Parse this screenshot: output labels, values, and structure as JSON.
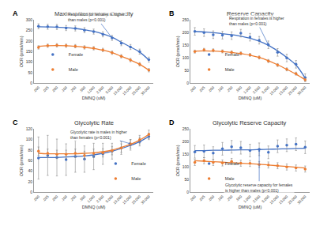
{
  "chart_data": [
    {
      "type": "scatter",
      "label": "A",
      "title": "Maximal Respiratory Capacity",
      "x_label": "DMNQ (uM)",
      "y_label": "OCR (pmol/min)",
      "categories": [
        ".000",
        ".025",
        ".050",
        ".100",
        ".250",
        ".500",
        "1.000",
        "2.500",
        "5.000",
        "10.000",
        "15.000",
        "20.000",
        "30.000"
      ],
      "series": [
        {
          "name": "Female",
          "color": "#4472c4",
          "marker": "circle",
          "values": [
            270,
            268,
            267,
            262,
            260,
            252,
            245,
            232,
            215,
            190,
            172,
            150,
            112
          ],
          "errors": [
            12,
            12,
            12,
            12,
            12,
            12,
            12,
            12,
            12,
            12,
            12,
            12,
            12
          ],
          "trend": [
            268,
            267,
            266,
            264,
            260,
            254,
            246,
            234,
            218,
            195,
            172,
            148,
            110
          ]
        },
        {
          "name": "Male",
          "color": "#ed7d31",
          "marker": "circle",
          "values": [
            170,
            178,
            180,
            178,
            176,
            170,
            166,
            158,
            145,
            128,
            110,
            90,
            62
          ],
          "errors": [
            8,
            8,
            8,
            8,
            8,
            8,
            8,
            8,
            8,
            8,
            8,
            8,
            8
          ],
          "trend": [
            175,
            178,
            179,
            178,
            175,
            171,
            165,
            157,
            145,
            128,
            110,
            90,
            62
          ]
        }
      ],
      "ylim": [
        0,
        300
      ],
      "yticks": [
        0,
        50,
        100,
        150,
        200,
        250,
        300
      ],
      "grid": false,
      "legend": "lower left",
      "annotation": {
        "text": [
          "Respiration for females is higher",
          "than males (p<0.001)"
        ],
        "category": "5.000",
        "y": 215
      }
    },
    {
      "type": "scatter",
      "label": "B",
      "title": "Reserve Capacity",
      "x_label": "DMNQ (uM)",
      "y_label": "OCR (pmol/min)",
      "categories": [
        ".000",
        ".025",
        ".050",
        ".100",
        ".250",
        ".500",
        "1.000",
        "2.500",
        "5.000",
        "10.000",
        "15.000",
        "20.000",
        "30.000"
      ],
      "series": [
        {
          "name": "Female",
          "color": "#4472c4",
          "marker": "circle",
          "values": [
            205,
            200,
            192,
            190,
            188,
            198,
            182,
            170,
            152,
            122,
            100,
            75,
            22
          ],
          "errors": [
            15,
            15,
            15,
            15,
            15,
            15,
            15,
            15,
            15,
            15,
            15,
            15,
            15
          ],
          "trend": [
            205,
            203,
            200,
            196,
            192,
            186,
            178,
            166,
            150,
            128,
            102,
            72,
            20
          ]
        },
        {
          "name": "Male",
          "color": "#ed7d31",
          "marker": "circle",
          "values": [
            125,
            132,
            130,
            126,
            122,
            118,
            112,
            102,
            88,
            72,
            55,
            38,
            14
          ],
          "errors": [
            6,
            6,
            6,
            6,
            6,
            6,
            6,
            6,
            6,
            6,
            6,
            6,
            6
          ],
          "trend": [
            127,
            128,
            127,
            125,
            122,
            117,
            111,
            102,
            89,
            73,
            55,
            36,
            14
          ]
        }
      ],
      "ylim": [
        0,
        250
      ],
      "yticks": [
        0,
        50,
        100,
        150,
        200,
        250
      ],
      "grid": false,
      "legend": "lower left",
      "annotation": {
        "text": [
          "Respiration in females is higher",
          "than males (p<0.001)"
        ],
        "category": "5.000",
        "y": 152
      }
    },
    {
      "type": "scatter",
      "label": "C",
      "title": "Glycolytic Rate",
      "x_label": "DMNQ (uM)",
      "y_label": "OCR (pmol/min)",
      "categories": [
        ".000",
        ".025",
        ".050",
        ".100",
        ".250",
        ".500",
        "1.000",
        "2.500",
        "5.000",
        "10.000",
        "15.000",
        "20.000",
        "30.000"
      ],
      "series": [
        {
          "name": "Female",
          "color": "#4472c4",
          "marker": "circle",
          "values": [
            65,
            70,
            66,
            62,
            68,
            63,
            68,
            73,
            78,
            84,
            90,
            96,
            106
          ],
          "errors": [
            40,
            38,
            35,
            30,
            30,
            25,
            25,
            20,
            15,
            12,
            10,
            8,
            6
          ],
          "trend": [
            66,
            66,
            66,
            67,
            68,
            69,
            71,
            74,
            78,
            83,
            89,
            96,
            106
          ]
        },
        {
          "name": "Male",
          "color": "#ed7d31",
          "marker": "circle",
          "values": [
            78,
            74,
            72,
            72,
            74,
            70,
            74,
            75,
            79,
            84,
            92,
            100,
            110
          ],
          "errors": [
            8,
            8,
            8,
            8,
            8,
            8,
            8,
            8,
            8,
            8,
            8,
            8,
            8
          ],
          "trend": [
            74,
            73,
            73,
            73,
            73,
            74,
            75,
            77,
            80,
            85,
            91,
            99,
            110
          ]
        }
      ],
      "ylim": [
        0,
        120
      ],
      "yticks": [
        0,
        20,
        40,
        60,
        80,
        100,
        120
      ],
      "grid": false,
      "legend": "lower right",
      "annotation": {
        "text": [
          "Glycolytic rate is males in higher",
          "than females (p<0.001)"
        ],
        "category": "15.000",
        "y": 92
      }
    },
    {
      "type": "scatter",
      "label": "D",
      "title": "Glycolytic Reserve Capacity",
      "x_label": "DMNQ (uM)",
      "y_label": "OCR (pmol/min)",
      "categories": [
        ".000",
        ".025",
        ".050",
        ".100",
        ".250",
        ".500",
        "1.000",
        "2.500",
        "5.000",
        "10.000",
        "15.000",
        "20.000",
        "30.000"
      ],
      "series": [
        {
          "name": "Female",
          "color": "#4472c4",
          "marker": "circle",
          "values": [
            160,
            162,
            155,
            172,
            180,
            176,
            165,
            170,
            158,
            182,
            186,
            190,
            178
          ],
          "errors": [
            25,
            25,
            25,
            25,
            25,
            25,
            25,
            25,
            25,
            25,
            25,
            25,
            25
          ],
          "trend": [
            165,
            165,
            166,
            166,
            167,
            168,
            168,
            169,
            170,
            171,
            172,
            173,
            174
          ]
        },
        {
          "name": "Male",
          "color": "#ed7d31",
          "marker": "circle",
          "values": [
            118,
            125,
            118,
            116,
            122,
            115,
            114,
            110,
            108,
            105,
            100,
            96,
            92
          ],
          "errors": [
            12,
            12,
            12,
            12,
            12,
            12,
            12,
            12,
            12,
            12,
            12,
            12,
            12
          ],
          "trend": [
            125,
            123,
            121,
            119,
            117,
            115,
            113,
            111,
            108,
            105,
            102,
            99,
            96
          ]
        }
      ],
      "ylim": [
        0,
        250
      ],
      "yticks": [
        0,
        50,
        100,
        150,
        200,
        250
      ],
      "grid": false,
      "legend": "lower left",
      "annotation": {
        "text": [
          "Glycolytic reserve capacity for females",
          "is higher than males (p<0.001)"
        ],
        "category": "2.500",
        "y": 169
      }
    }
  ]
}
